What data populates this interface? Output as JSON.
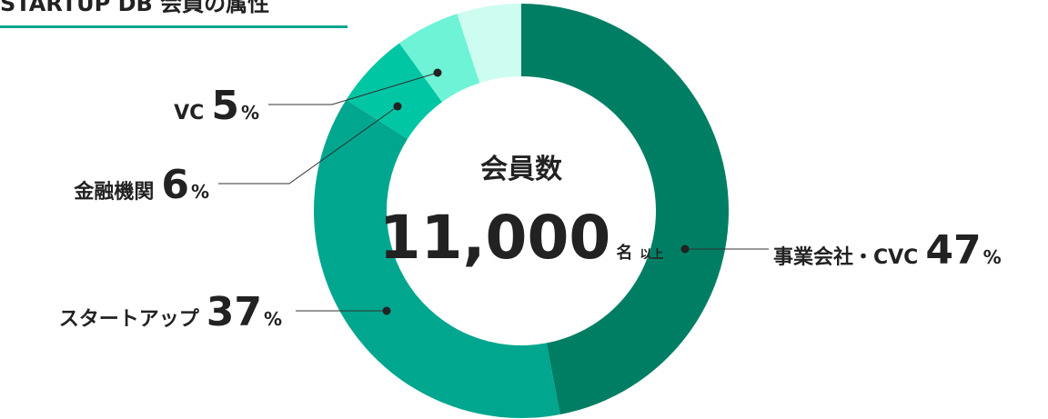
{
  "chart_data": {
    "type": "donut",
    "title": "STARTUP DB 会員の属性",
    "categories": [
      "事業会社・CVC",
      "スタートアップ",
      "金融機関",
      "VC",
      null
    ],
    "values": [
      47,
      37,
      6,
      5,
      5
    ],
    "value_unit": "%",
    "colors": [
      "#007e63",
      "#00a68e",
      "#00c6a4",
      "#6ef3d6",
      "#cdfdf0"
    ],
    "center_label": "会員数",
    "center_value": "11,000",
    "center_unit": "名",
    "center_note": "以上"
  }
}
